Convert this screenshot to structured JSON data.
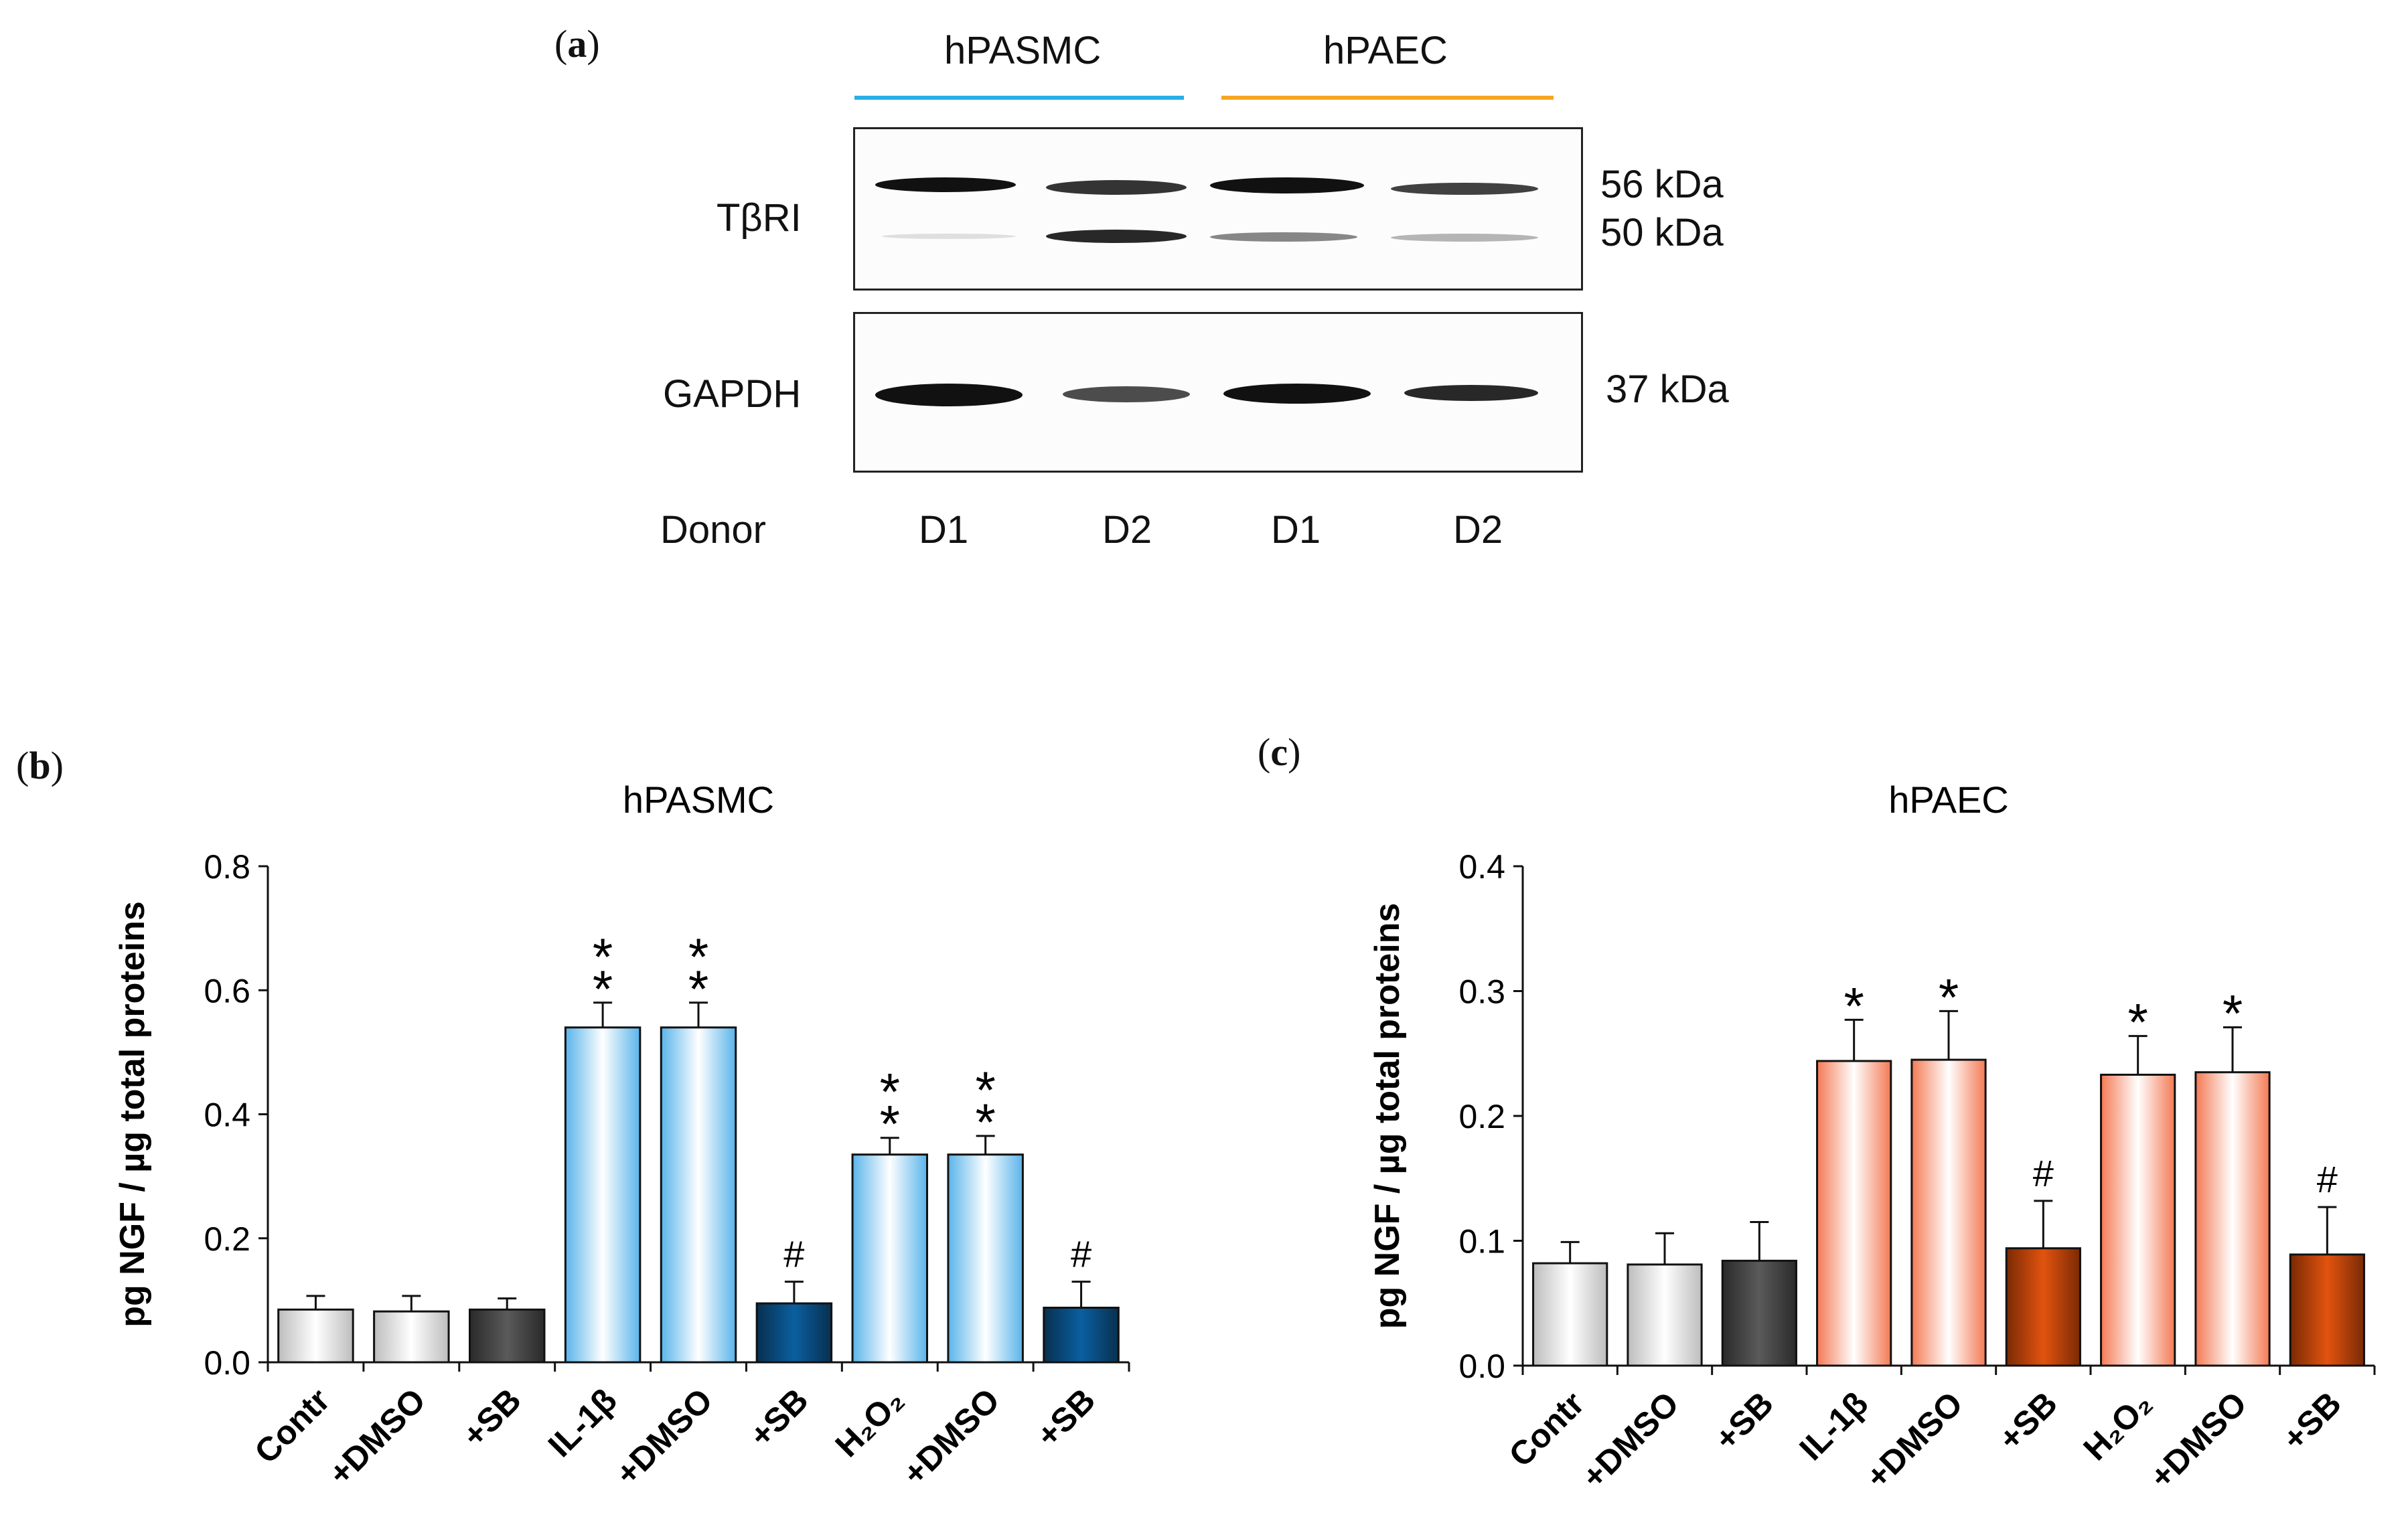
{
  "panel_a": {
    "label_letter": "a",
    "groups": [
      {
        "name": "hPASMC",
        "color": "#2aaee6"
      },
      {
        "name": "hPAEC",
        "color": "#f5a623"
      }
    ],
    "rows": [
      "TβRI",
      "GAPDH"
    ],
    "kda_labels": [
      "56 kDa",
      "50 kDa",
      "37 kDa"
    ],
    "donor_label": "Donor",
    "donors": [
      "D1",
      "D2",
      "D1",
      "D2"
    ]
  },
  "chart_data": [
    {
      "panel": "b",
      "type": "bar",
      "title": "hPASMC",
      "ylabel": "pg NGF / µg total proteins",
      "ylim": [
        0,
        0.8
      ],
      "yticks": [
        "0.0",
        "0.2",
        "0.4",
        "0.6",
        "0.8"
      ],
      "categories": [
        "Contr",
        "+DMSO",
        "+SB",
        "IL-1β",
        "+DMSO",
        "+SB",
        "H₂O₂",
        "+DMSO",
        "+SB"
      ],
      "values": [
        0.085,
        0.082,
        0.085,
        0.54,
        0.54,
        0.095,
        0.335,
        0.335,
        0.088
      ],
      "errors": [
        0.022,
        0.025,
        0.018,
        0.04,
        0.04,
        0.035,
        0.027,
        0.03,
        0.042
      ],
      "annotations": [
        "",
        "",
        "",
        "**",
        "**",
        "#",
        "**",
        "**",
        "#"
      ],
      "fill_styles": [
        "control",
        "control",
        "control-dark",
        "light",
        "light",
        "dark",
        "light",
        "light",
        "dark"
      ],
      "colors": {
        "light": "#5ab4ea",
        "dark": "#0a5fa0",
        "dark_edge": "#08304f",
        "control": "#bdbdbd",
        "control_dark": "#5a5a5a"
      }
    },
    {
      "panel": "c",
      "type": "bar",
      "title": "hPAEC",
      "ylabel": "pg NGF / µg total proteins",
      "ylim": [
        0,
        0.4
      ],
      "yticks": [
        "0.0",
        "0.1",
        "0.2",
        "0.3",
        "0.4"
      ],
      "categories": [
        "Contr",
        "+DMSO",
        "+SB",
        "IL-1β",
        "+DMSO",
        "+SB",
        "H₂O₂",
        "+DMSO",
        "+SB"
      ],
      "values": [
        0.082,
        0.081,
        0.084,
        0.244,
        0.245,
        0.094,
        0.233,
        0.235,
        0.089
      ],
      "errors": [
        0.017,
        0.025,
        0.031,
        0.033,
        0.039,
        0.038,
        0.031,
        0.036,
        0.038
      ],
      "annotations": [
        "",
        "",
        "",
        "*",
        "*",
        "#",
        "*",
        "*",
        "#"
      ],
      "fill_styles": [
        "control",
        "control",
        "control-dark",
        "light",
        "light",
        "dark",
        "light",
        "light",
        "dark"
      ],
      "colors": {
        "light": "#f47a55",
        "dark": "#e2530e",
        "dark_edge": "#7a2a05",
        "control": "#bdbdbd",
        "control_dark": "#5a5a5a"
      }
    }
  ]
}
